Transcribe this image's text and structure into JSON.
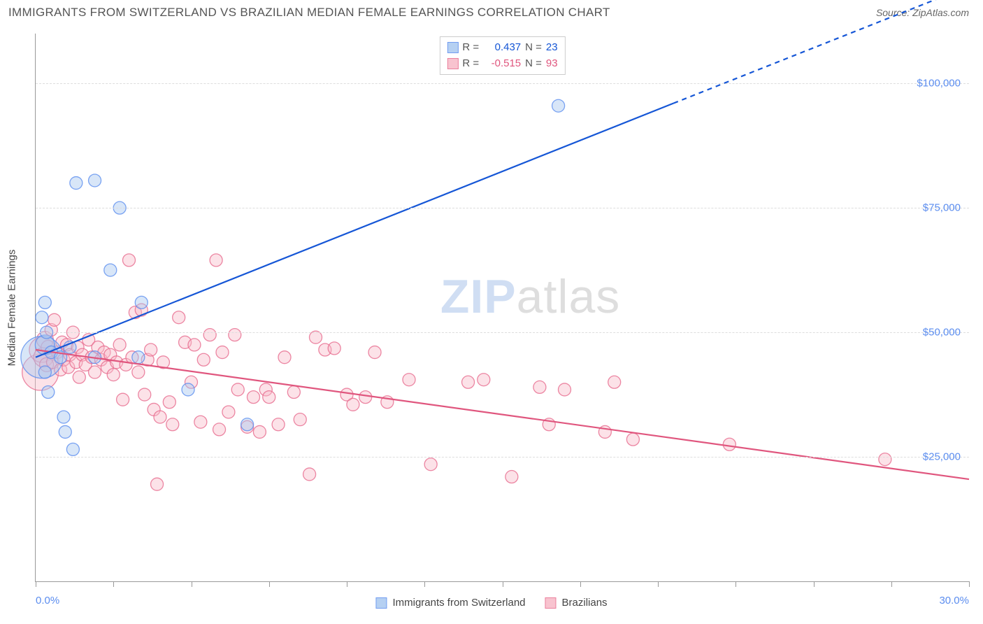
{
  "header": {
    "title": "IMMIGRANTS FROM SWITZERLAND VS BRAZILIAN MEDIAN FEMALE EARNINGS CORRELATION CHART",
    "source_prefix": "Source: ",
    "source": "ZipAtlas.com"
  },
  "chart": {
    "type": "scatter-trend",
    "y_axis_label": "Median Female Earnings",
    "xlim": [
      0,
      30
    ],
    "ylim": [
      0,
      110000
    ],
    "x_tick_positions": [
      0,
      2.5,
      5,
      7.5,
      10,
      12.5,
      15,
      17.5,
      20,
      22.5,
      25,
      27.5,
      30
    ],
    "x_lim_labels": {
      "min": "0.0%",
      "max": "30.0%"
    },
    "y_ticks": [
      25000,
      50000,
      75000,
      100000
    ],
    "y_tick_labels": [
      "$25,000",
      "$50,000",
      "$75,000",
      "$100,000"
    ],
    "grid_color": "#dddddd",
    "axis_color": "#999999",
    "background_color": "#ffffff",
    "label_fontsize": 15,
    "tick_label_color": "#5b8def",
    "series": {
      "swiss": {
        "label": "Immigrants from Switzerland",
        "fill": "#a9c8f0",
        "stroke": "#5b8def",
        "fill_opacity": 0.45,
        "trend_color": "#1556d6",
        "trend_width": 2.2,
        "R": "0.437",
        "N": "23",
        "trend": {
          "x0": 0,
          "y0": 45000,
          "x1": 20.5,
          "y1": 96000,
          "x_dash_to": 30,
          "y_dash_to": 119500
        },
        "points": [
          {
            "x": 0.2,
            "y": 45000,
            "r": 30
          },
          {
            "x": 0.3,
            "y": 47500,
            "r": 14
          },
          {
            "x": 0.3,
            "y": 42000,
            "r": 9
          },
          {
            "x": 0.2,
            "y": 53000,
            "r": 9
          },
          {
            "x": 0.3,
            "y": 56000,
            "r": 9
          },
          {
            "x": 0.35,
            "y": 50000,
            "r": 9
          },
          {
            "x": 0.4,
            "y": 38000,
            "r": 9
          },
          {
            "x": 0.5,
            "y": 46000,
            "r": 9
          },
          {
            "x": 0.8,
            "y": 45000,
            "r": 9
          },
          {
            "x": 0.9,
            "y": 33000,
            "r": 9
          },
          {
            "x": 0.95,
            "y": 30000,
            "r": 9
          },
          {
            "x": 1.1,
            "y": 47000,
            "r": 9
          },
          {
            "x": 1.2,
            "y": 26500,
            "r": 9
          },
          {
            "x": 1.3,
            "y": 80000,
            "r": 9
          },
          {
            "x": 1.9,
            "y": 80500,
            "r": 9
          },
          {
            "x": 1.9,
            "y": 45000,
            "r": 9
          },
          {
            "x": 2.4,
            "y": 62500,
            "r": 9
          },
          {
            "x": 2.7,
            "y": 75000,
            "r": 9
          },
          {
            "x": 3.3,
            "y": 45000,
            "r": 9
          },
          {
            "x": 3.4,
            "y": 56000,
            "r": 9
          },
          {
            "x": 4.9,
            "y": 38500,
            "r": 9
          },
          {
            "x": 6.8,
            "y": 31500,
            "r": 9
          },
          {
            "x": 16.8,
            "y": 95500,
            "r": 9
          }
        ]
      },
      "brazil": {
        "label": "Brazilians",
        "fill": "#f7b9c7",
        "stroke": "#e76a8d",
        "fill_opacity": 0.42,
        "trend_color": "#e0567e",
        "trend_width": 2.2,
        "R": "-0.515",
        "N": "93",
        "trend": {
          "x0": 0,
          "y0": 46500,
          "x1": 30,
          "y1": 20500
        },
        "points": [
          {
            "x": 0.15,
            "y": 42000,
            "r": 26
          },
          {
            "x": 0.2,
            "y": 46500,
            "r": 18
          },
          {
            "x": 0.25,
            "y": 45000,
            "r": 14
          },
          {
            "x": 0.3,
            "y": 48500,
            "r": 12
          },
          {
            "x": 0.35,
            "y": 43500,
            "r": 10
          },
          {
            "x": 0.4,
            "y": 47000,
            "r": 10
          },
          {
            "x": 0.5,
            "y": 50500,
            "r": 9
          },
          {
            "x": 0.55,
            "y": 44000,
            "r": 9
          },
          {
            "x": 0.6,
            "y": 52500,
            "r": 9
          },
          {
            "x": 0.7,
            "y": 46000,
            "r": 9
          },
          {
            "x": 0.8,
            "y": 42500,
            "r": 9
          },
          {
            "x": 0.85,
            "y": 48000,
            "r": 9
          },
          {
            "x": 0.9,
            "y": 44500,
            "r": 9
          },
          {
            "x": 1.0,
            "y": 47500,
            "r": 9
          },
          {
            "x": 1.05,
            "y": 43000,
            "r": 9
          },
          {
            "x": 1.1,
            "y": 45500,
            "r": 9
          },
          {
            "x": 1.2,
            "y": 50000,
            "r": 9
          },
          {
            "x": 1.3,
            "y": 44000,
            "r": 9
          },
          {
            "x": 1.35,
            "y": 47000,
            "r": 9
          },
          {
            "x": 1.4,
            "y": 41000,
            "r": 9
          },
          {
            "x": 1.5,
            "y": 45500,
            "r": 9
          },
          {
            "x": 1.6,
            "y": 43500,
            "r": 9
          },
          {
            "x": 1.7,
            "y": 48500,
            "r": 9
          },
          {
            "x": 1.8,
            "y": 45000,
            "r": 9
          },
          {
            "x": 1.9,
            "y": 42000,
            "r": 9
          },
          {
            "x": 2.0,
            "y": 47000,
            "r": 9
          },
          {
            "x": 2.1,
            "y": 44500,
            "r": 9
          },
          {
            "x": 2.2,
            "y": 46000,
            "r": 9
          },
          {
            "x": 2.3,
            "y": 43000,
            "r": 9
          },
          {
            "x": 2.4,
            "y": 45500,
            "r": 9
          },
          {
            "x": 2.5,
            "y": 41500,
            "r": 9
          },
          {
            "x": 2.6,
            "y": 44000,
            "r": 9
          },
          {
            "x": 2.7,
            "y": 47500,
            "r": 9
          },
          {
            "x": 2.8,
            "y": 36500,
            "r": 9
          },
          {
            "x": 2.9,
            "y": 43500,
            "r": 9
          },
          {
            "x": 3.0,
            "y": 64500,
            "r": 9
          },
          {
            "x": 3.1,
            "y": 45000,
            "r": 9
          },
          {
            "x": 3.2,
            "y": 54000,
            "r": 9
          },
          {
            "x": 3.3,
            "y": 42000,
            "r": 9
          },
          {
            "x": 3.4,
            "y": 54500,
            "r": 9
          },
          {
            "x": 3.5,
            "y": 37500,
            "r": 9
          },
          {
            "x": 3.6,
            "y": 44500,
            "r": 9
          },
          {
            "x": 3.7,
            "y": 46500,
            "r": 9
          },
          {
            "x": 3.8,
            "y": 34500,
            "r": 9
          },
          {
            "x": 3.9,
            "y": 19500,
            "r": 9
          },
          {
            "x": 4.0,
            "y": 33000,
            "r": 9
          },
          {
            "x": 4.1,
            "y": 44000,
            "r": 9
          },
          {
            "x": 4.3,
            "y": 36000,
            "r": 9
          },
          {
            "x": 4.4,
            "y": 31500,
            "r": 9
          },
          {
            "x": 4.6,
            "y": 53000,
            "r": 9
          },
          {
            "x": 4.8,
            "y": 48000,
            "r": 9
          },
          {
            "x": 5.0,
            "y": 40000,
            "r": 9
          },
          {
            "x": 5.1,
            "y": 47500,
            "r": 9
          },
          {
            "x": 5.3,
            "y": 32000,
            "r": 9
          },
          {
            "x": 5.4,
            "y": 44500,
            "r": 9
          },
          {
            "x": 5.6,
            "y": 49500,
            "r": 9
          },
          {
            "x": 5.8,
            "y": 64500,
            "r": 9
          },
          {
            "x": 5.9,
            "y": 30500,
            "r": 9
          },
          {
            "x": 6.0,
            "y": 46000,
            "r": 9
          },
          {
            "x": 6.2,
            "y": 34000,
            "r": 9
          },
          {
            "x": 6.4,
            "y": 49500,
            "r": 9
          },
          {
            "x": 6.5,
            "y": 38500,
            "r": 9
          },
          {
            "x": 6.8,
            "y": 31000,
            "r": 9
          },
          {
            "x": 7.0,
            "y": 37000,
            "r": 9
          },
          {
            "x": 7.2,
            "y": 30000,
            "r": 9
          },
          {
            "x": 7.4,
            "y": 38500,
            "r": 9
          },
          {
            "x": 7.5,
            "y": 37000,
            "r": 9
          },
          {
            "x": 7.8,
            "y": 31500,
            "r": 9
          },
          {
            "x": 8.0,
            "y": 45000,
            "r": 9
          },
          {
            "x": 8.3,
            "y": 38000,
            "r": 9
          },
          {
            "x": 8.5,
            "y": 32500,
            "r": 9
          },
          {
            "x": 8.8,
            "y": 21500,
            "r": 9
          },
          {
            "x": 9.0,
            "y": 49000,
            "r": 9
          },
          {
            "x": 9.3,
            "y": 46500,
            "r": 9
          },
          {
            "x": 9.6,
            "y": 46800,
            "r": 9
          },
          {
            "x": 10.0,
            "y": 37500,
            "r": 9
          },
          {
            "x": 10.2,
            "y": 35500,
            "r": 9
          },
          {
            "x": 10.6,
            "y": 37000,
            "r": 9
          },
          {
            "x": 10.9,
            "y": 46000,
            "r": 9
          },
          {
            "x": 11.3,
            "y": 36000,
            "r": 9
          },
          {
            "x": 12.0,
            "y": 40500,
            "r": 9
          },
          {
            "x": 12.7,
            "y": 23500,
            "r": 9
          },
          {
            "x": 13.9,
            "y": 40000,
            "r": 9
          },
          {
            "x": 14.4,
            "y": 40500,
            "r": 9
          },
          {
            "x": 15.3,
            "y": 21000,
            "r": 9
          },
          {
            "x": 16.2,
            "y": 39000,
            "r": 9
          },
          {
            "x": 16.5,
            "y": 31500,
            "r": 9
          },
          {
            "x": 17.0,
            "y": 38500,
            "r": 9
          },
          {
            "x": 18.3,
            "y": 30000,
            "r": 9
          },
          {
            "x": 18.6,
            "y": 40000,
            "r": 9
          },
          {
            "x": 19.2,
            "y": 28500,
            "r": 9
          },
          {
            "x": 22.3,
            "y": 27500,
            "r": 9
          },
          {
            "x": 27.3,
            "y": 24500,
            "r": 9
          }
        ]
      }
    }
  },
  "legend_top": {
    "r_label": "R =",
    "n_label": "N ="
  },
  "watermark": {
    "part1": "ZIP",
    "part2": "atlas"
  }
}
